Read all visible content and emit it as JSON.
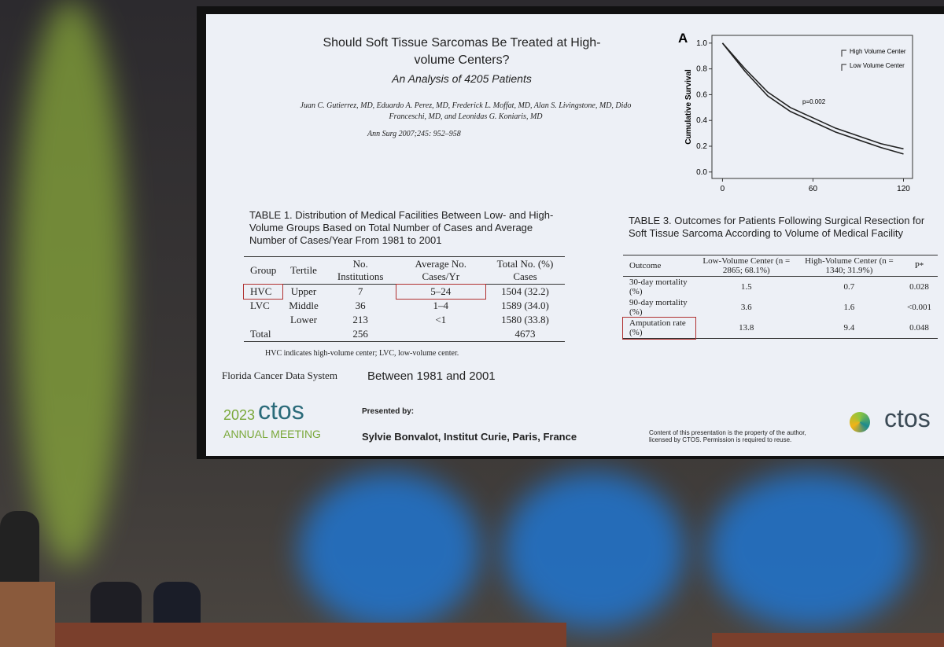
{
  "slide": {
    "title": "Should Soft Tissue Sarcomas Be Treated at High-volume Centers?",
    "subtitle": "An Analysis of 4205 Patients",
    "authors": "Juan C. Gutierrez, MD, Eduardo A. Perez, MD, Frederick L. Moffat, MD, Alan S. Livingstone, MD, Dido Franceschi, MD, and Leonidas G. Koniaris, MD",
    "citation": "Ann Surg 2007;245: 952–958",
    "table1": {
      "caption": "TABLE 1.  Distribution of Medical Facilities Between Low- and High-Volume Groups Based on Total Number of Cases and Average Number of Cases/Year From 1981 to 2001",
      "header": [
        "Group",
        "Tertile",
        "No. Institutions",
        "Average No. Cases/Yr",
        "Total No. (%) Cases"
      ],
      "rows": [
        [
          "HVC",
          "Upper",
          "7",
          "5–24",
          "1504 (32.2)"
        ],
        [
          "LVC",
          "Middle",
          "36",
          "1–4",
          "1589 (34.0)"
        ],
        [
          null,
          "Lower",
          "213",
          "<1",
          "1580 (33.8)"
        ],
        [
          "Total",
          null,
          "256",
          null,
          "4673"
        ]
      ],
      "footnote": "HVC indicates high-volume center; LVC, low-volume center."
    },
    "source": "Florida Cancer Data System",
    "period": "Between 1981 and 2001",
    "table3": {
      "caption": "TABLE 3.  Outcomes for Patients Following Surgical Resection for Soft Tissue Sarcoma According to Volume of Medical Facility",
      "header": [
        "Outcome",
        "Low-Volume Center (n = 2865; 68.1%)",
        "High-Volume Center (n = 1340; 31.9%)",
        "P*"
      ],
      "rows": [
        [
          "30-day mortality (%)",
          "1.5",
          "0.7",
          "0.028"
        ],
        [
          "90-day mortality (%)",
          "3.6",
          "1.6",
          "<0.001"
        ],
        [
          "Amputation rate (%)",
          "13.8",
          "9.4",
          "0.048"
        ]
      ]
    },
    "footer": {
      "year": "2023",
      "brand": "ctos",
      "meeting": "ANNUAL MEETING",
      "presented_by": "Presented by:",
      "presenter": "Sylvie Bonvalot, Institut Curie, Paris, France",
      "notice": "Content of this presentation is the property of the author, licensed by CTOS. Permission is required to reuse.",
      "brand_right": "ctos"
    }
  },
  "chart_data": {
    "type": "line",
    "panel": "A",
    "y_label": "Cumulative Survival",
    "annotation": "p=0.002",
    "x": [
      0,
      15,
      30,
      45,
      60,
      75,
      90,
      105,
      120
    ],
    "series": [
      {
        "name": "High Volume Center",
        "color": "#222",
        "values": [
          1.0,
          0.8,
          0.62,
          0.5,
          0.42,
          0.34,
          0.28,
          0.22,
          0.18
        ]
      },
      {
        "name": "Low Volume Center",
        "color": "#222",
        "values": [
          1.0,
          0.78,
          0.59,
          0.47,
          0.39,
          0.31,
          0.25,
          0.19,
          0.14
        ]
      }
    ],
    "xlim": [
      -7,
      126
    ],
    "ylim": [
      -0.05,
      1.06
    ],
    "xticks": [
      0,
      60,
      120
    ],
    "yticks": [
      {
        "value": 0,
        "label": "0.0"
      },
      0.2,
      0.4,
      0.6,
      0.8,
      {
        "value": 1,
        "label": "1.0"
      }
    ]
  }
}
